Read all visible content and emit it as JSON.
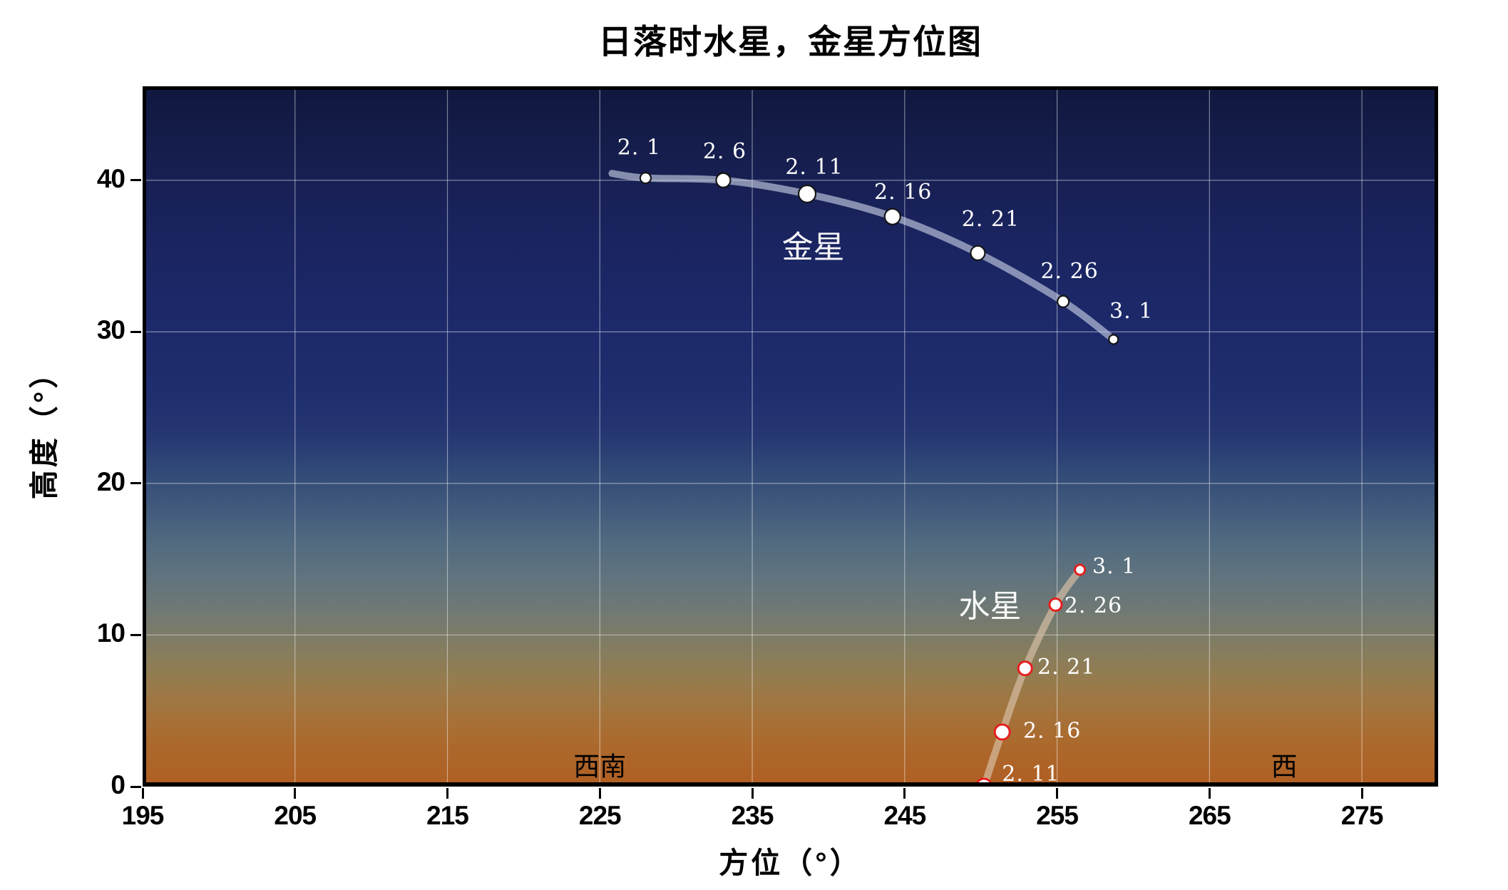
{
  "chart_data": {
    "type": "line",
    "title": "日落时水星，金星方位图",
    "xlabel": "方位（°）",
    "ylabel": "高度（°）",
    "xlim": [
      195,
      280
    ],
    "ylim": [
      0,
      46.2
    ],
    "xticks": [
      195,
      205,
      215,
      225,
      235,
      245,
      255,
      265,
      275
    ],
    "yticks": [
      0,
      10,
      20,
      30,
      40
    ],
    "grid": true,
    "grid_color": "rgba(255,255,255,0.45)",
    "sky_gradient": [
      {
        "pos": 0.0,
        "color": "#10173e"
      },
      {
        "pos": 0.1,
        "color": "#161e4e"
      },
      {
        "pos": 0.22,
        "color": "#1a2460"
      },
      {
        "pos": 0.34,
        "color": "#1c296a"
      },
      {
        "pos": 0.44,
        "color": "#1f2e6e"
      },
      {
        "pos": 0.5,
        "color": "#263772"
      },
      {
        "pos": 0.55,
        "color": "#314a77"
      },
      {
        "pos": 0.6,
        "color": "#41597c"
      },
      {
        "pos": 0.65,
        "color": "#516a80"
      },
      {
        "pos": 0.7,
        "color": "#60737e"
      },
      {
        "pos": 0.74,
        "color": "#6d7876"
      },
      {
        "pos": 0.78,
        "color": "#7b7c69"
      },
      {
        "pos": 0.82,
        "color": "#8b7d59"
      },
      {
        "pos": 0.86,
        "color": "#9a7a49"
      },
      {
        "pos": 0.9,
        "color": "#a5723a"
      },
      {
        "pos": 0.94,
        "color": "#ac692c"
      },
      {
        "pos": 1.0,
        "color": "#b05e23"
      }
    ],
    "series": [
      {
        "id": "venus",
        "name": "金星",
        "name_pos": {
          "az": 239.0,
          "alt": 35.6
        },
        "name_color": "#ffffff",
        "line_color": "rgba(203,211,231,0.62)",
        "line_width": 10,
        "marker_fill": "#ffffff",
        "marker_edge": "#141414",
        "marker_edge_width": 2.2,
        "label_color": "#ffffff",
        "line_lead": {
          "az": 225.8,
          "alt": 40.45
        },
        "points": [
          {
            "date": "2. 1",
            "az": 228.0,
            "alt": 40.15,
            "r": 7.5,
            "label_dx": -9,
            "label_dy": -43
          },
          {
            "date": "2. 6",
            "az": 233.1,
            "alt": 40.0,
            "r": 10,
            "label_dx": 2,
            "label_dy": -41
          },
          {
            "date": "2. 11",
            "az": 238.6,
            "alt": 39.1,
            "r": 12,
            "label_dx": 10,
            "label_dy": -38
          },
          {
            "date": "2. 16",
            "az": 244.2,
            "alt": 37.6,
            "r": 11,
            "label_dx": 15,
            "label_dy": -35
          },
          {
            "date": "2. 21",
            "az": 249.8,
            "alt": 35.2,
            "r": 10,
            "label_dx": 18,
            "label_dy": -48
          },
          {
            "date": "2. 26",
            "az": 255.4,
            "alt": 32.0,
            "r": 8,
            "label_dx": 9,
            "label_dy": -43
          },
          {
            "date": "3. 1",
            "az": 258.7,
            "alt": 29.5,
            "r": 6.5,
            "label_dx": 25,
            "label_dy": -40
          }
        ]
      },
      {
        "id": "mercury",
        "name": "水星",
        "name_pos": {
          "az": 250.6,
          "alt": 11.9
        },
        "name_color": "#ffffff",
        "line_color": "rgba(215,192,165,0.68)",
        "line_width": 10,
        "marker_fill": "#ffffff",
        "marker_edge": "#e32020",
        "marker_edge_width": 3,
        "label_color": "#ffffff",
        "line_lead": {
          "az": 249.7,
          "alt": -1.6
        },
        "points": [
          {
            "date": "2. 11",
            "az": 250.2,
            "alt": 0.0,
            "r": 11,
            "label_dx": 66,
            "label_dy": -18
          },
          {
            "date": "2. 16",
            "az": 251.4,
            "alt": 3.6,
            "r": 10.5,
            "label_dx": 70,
            "label_dy": -2
          },
          {
            "date": "2. 21",
            "az": 252.9,
            "alt": 7.8,
            "r": 9.5,
            "label_dx": 58,
            "label_dy": -2
          },
          {
            "date": "2. 26",
            "az": 254.9,
            "alt": 12.0,
            "r": 8.5,
            "label_dx": 53,
            "label_dy": 1
          },
          {
            "date": "3. 1",
            "az": 256.5,
            "alt": 14.3,
            "r": 7,
            "label_dx": 48,
            "label_dy": -5
          }
        ]
      }
    ],
    "annotations": [
      {
        "id": "southwest",
        "text": "西南",
        "az": 225.0,
        "alt": 1.35,
        "color": "#000000"
      },
      {
        "id": "west",
        "text": "西",
        "az": 269.9,
        "alt": 1.35,
        "color": "#000000"
      }
    ]
  }
}
